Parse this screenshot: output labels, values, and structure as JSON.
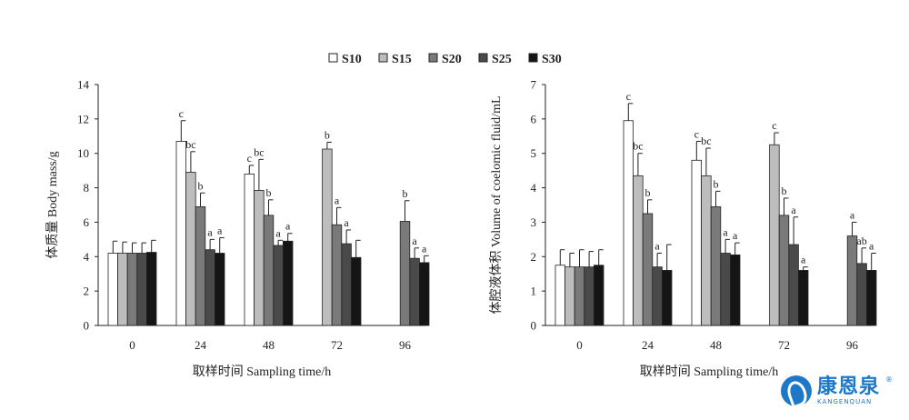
{
  "legend": [
    {
      "name": "S10",
      "color": "#ffffff"
    },
    {
      "name": "S15",
      "color": "#bdbdbd"
    },
    {
      "name": "S20",
      "color": "#7a7a7a"
    },
    {
      "name": "S25",
      "color": "#4a4a4a"
    },
    {
      "name": "S30",
      "color": "#151515"
    }
  ],
  "chart_data": [
    {
      "type": "bar",
      "xlabel": "取样时间 Sampling time/h",
      "ylabel": "体质量 Body mass/g",
      "ylim": [
        0,
        14
      ],
      "yticks": [
        "0",
        "2",
        "4",
        "6",
        "8",
        "10",
        "12",
        "14"
      ],
      "categories": [
        "0",
        "24",
        "48",
        "72",
        "96"
      ],
      "series": [
        {
          "name": "S10",
          "values": [
            4.2,
            10.7,
            8.8,
            null,
            null
          ],
          "errors": [
            0.7,
            1.2,
            0.5,
            null,
            null
          ],
          "labels": [
            "",
            "c",
            "c",
            "",
            ""
          ]
        },
        {
          "name": "S15",
          "values": [
            4.2,
            8.9,
            7.85,
            10.25,
            null
          ],
          "errors": [
            0.65,
            1.2,
            1.8,
            0.4,
            null
          ],
          "labels": [
            "",
            "bc",
            "bc",
            "b",
            ""
          ]
        },
        {
          "name": "S20",
          "values": [
            4.2,
            6.9,
            6.4,
            5.85,
            6.05
          ],
          "errors": [
            0.6,
            0.8,
            0.9,
            1.0,
            1.2
          ],
          "labels": [
            "",
            "b",
            "b",
            "a",
            "b"
          ]
        },
        {
          "name": "S25",
          "values": [
            4.2,
            4.4,
            4.65,
            4.75,
            3.9
          ],
          "errors": [
            0.6,
            0.6,
            0.3,
            0.8,
            0.6
          ],
          "labels": [
            "",
            "a",
            "a",
            "a",
            "a"
          ]
        },
        {
          "name": "S30",
          "values": [
            4.25,
            4.2,
            4.9,
            3.95,
            3.65
          ],
          "errors": [
            0.7,
            0.9,
            0.45,
            1.0,
            0.4
          ],
          "labels": [
            "",
            "a",
            "a",
            "",
            "a"
          ]
        }
      ]
    },
    {
      "type": "bar",
      "xlabel": "取样时间 Sampling time/h",
      "ylabel": "体腔液体积 Volume of coelomic fluid/mL",
      "ylim": [
        0,
        7
      ],
      "yticks": [
        "0",
        "1",
        "2",
        "3",
        "4",
        "5",
        "6",
        "7"
      ],
      "categories": [
        "0",
        "24",
        "48",
        "72",
        "96"
      ],
      "series": [
        {
          "name": "S10",
          "values": [
            1.75,
            5.95,
            4.8,
            null,
            null
          ],
          "errors": [
            0.45,
            0.5,
            0.55,
            null,
            null
          ],
          "labels": [
            "",
            "c",
            "c",
            "",
            ""
          ]
        },
        {
          "name": "S15",
          "values": [
            1.7,
            4.35,
            4.35,
            5.25,
            null
          ],
          "errors": [
            0.4,
            0.65,
            0.8,
            0.35,
            null
          ],
          "labels": [
            "",
            "bc",
            "bc",
            "c",
            ""
          ]
        },
        {
          "name": "S20",
          "values": [
            1.7,
            3.25,
            3.45,
            3.2,
            2.6
          ],
          "errors": [
            0.5,
            0.4,
            0.45,
            0.5,
            0.4
          ],
          "labels": [
            "",
            "b",
            "b",
            "b",
            "a"
          ]
        },
        {
          "name": "S25",
          "values": [
            1.7,
            1.7,
            2.1,
            2.35,
            1.8
          ],
          "errors": [
            0.45,
            0.4,
            0.4,
            0.8,
            0.45
          ],
          "labels": [
            "",
            "a",
            "a",
            "a",
            "ab"
          ]
        },
        {
          "name": "S30",
          "values": [
            1.75,
            1.6,
            2.05,
            1.6,
            1.6
          ],
          "errors": [
            0.45,
            0.75,
            0.35,
            0.1,
            0.5
          ],
          "labels": [
            "",
            "",
            "a",
            "a",
            "a"
          ]
        }
      ]
    }
  ],
  "watermark": {
    "cn": "康恩泉",
    "en": "KANGENQUAN",
    "mark": "®"
  }
}
